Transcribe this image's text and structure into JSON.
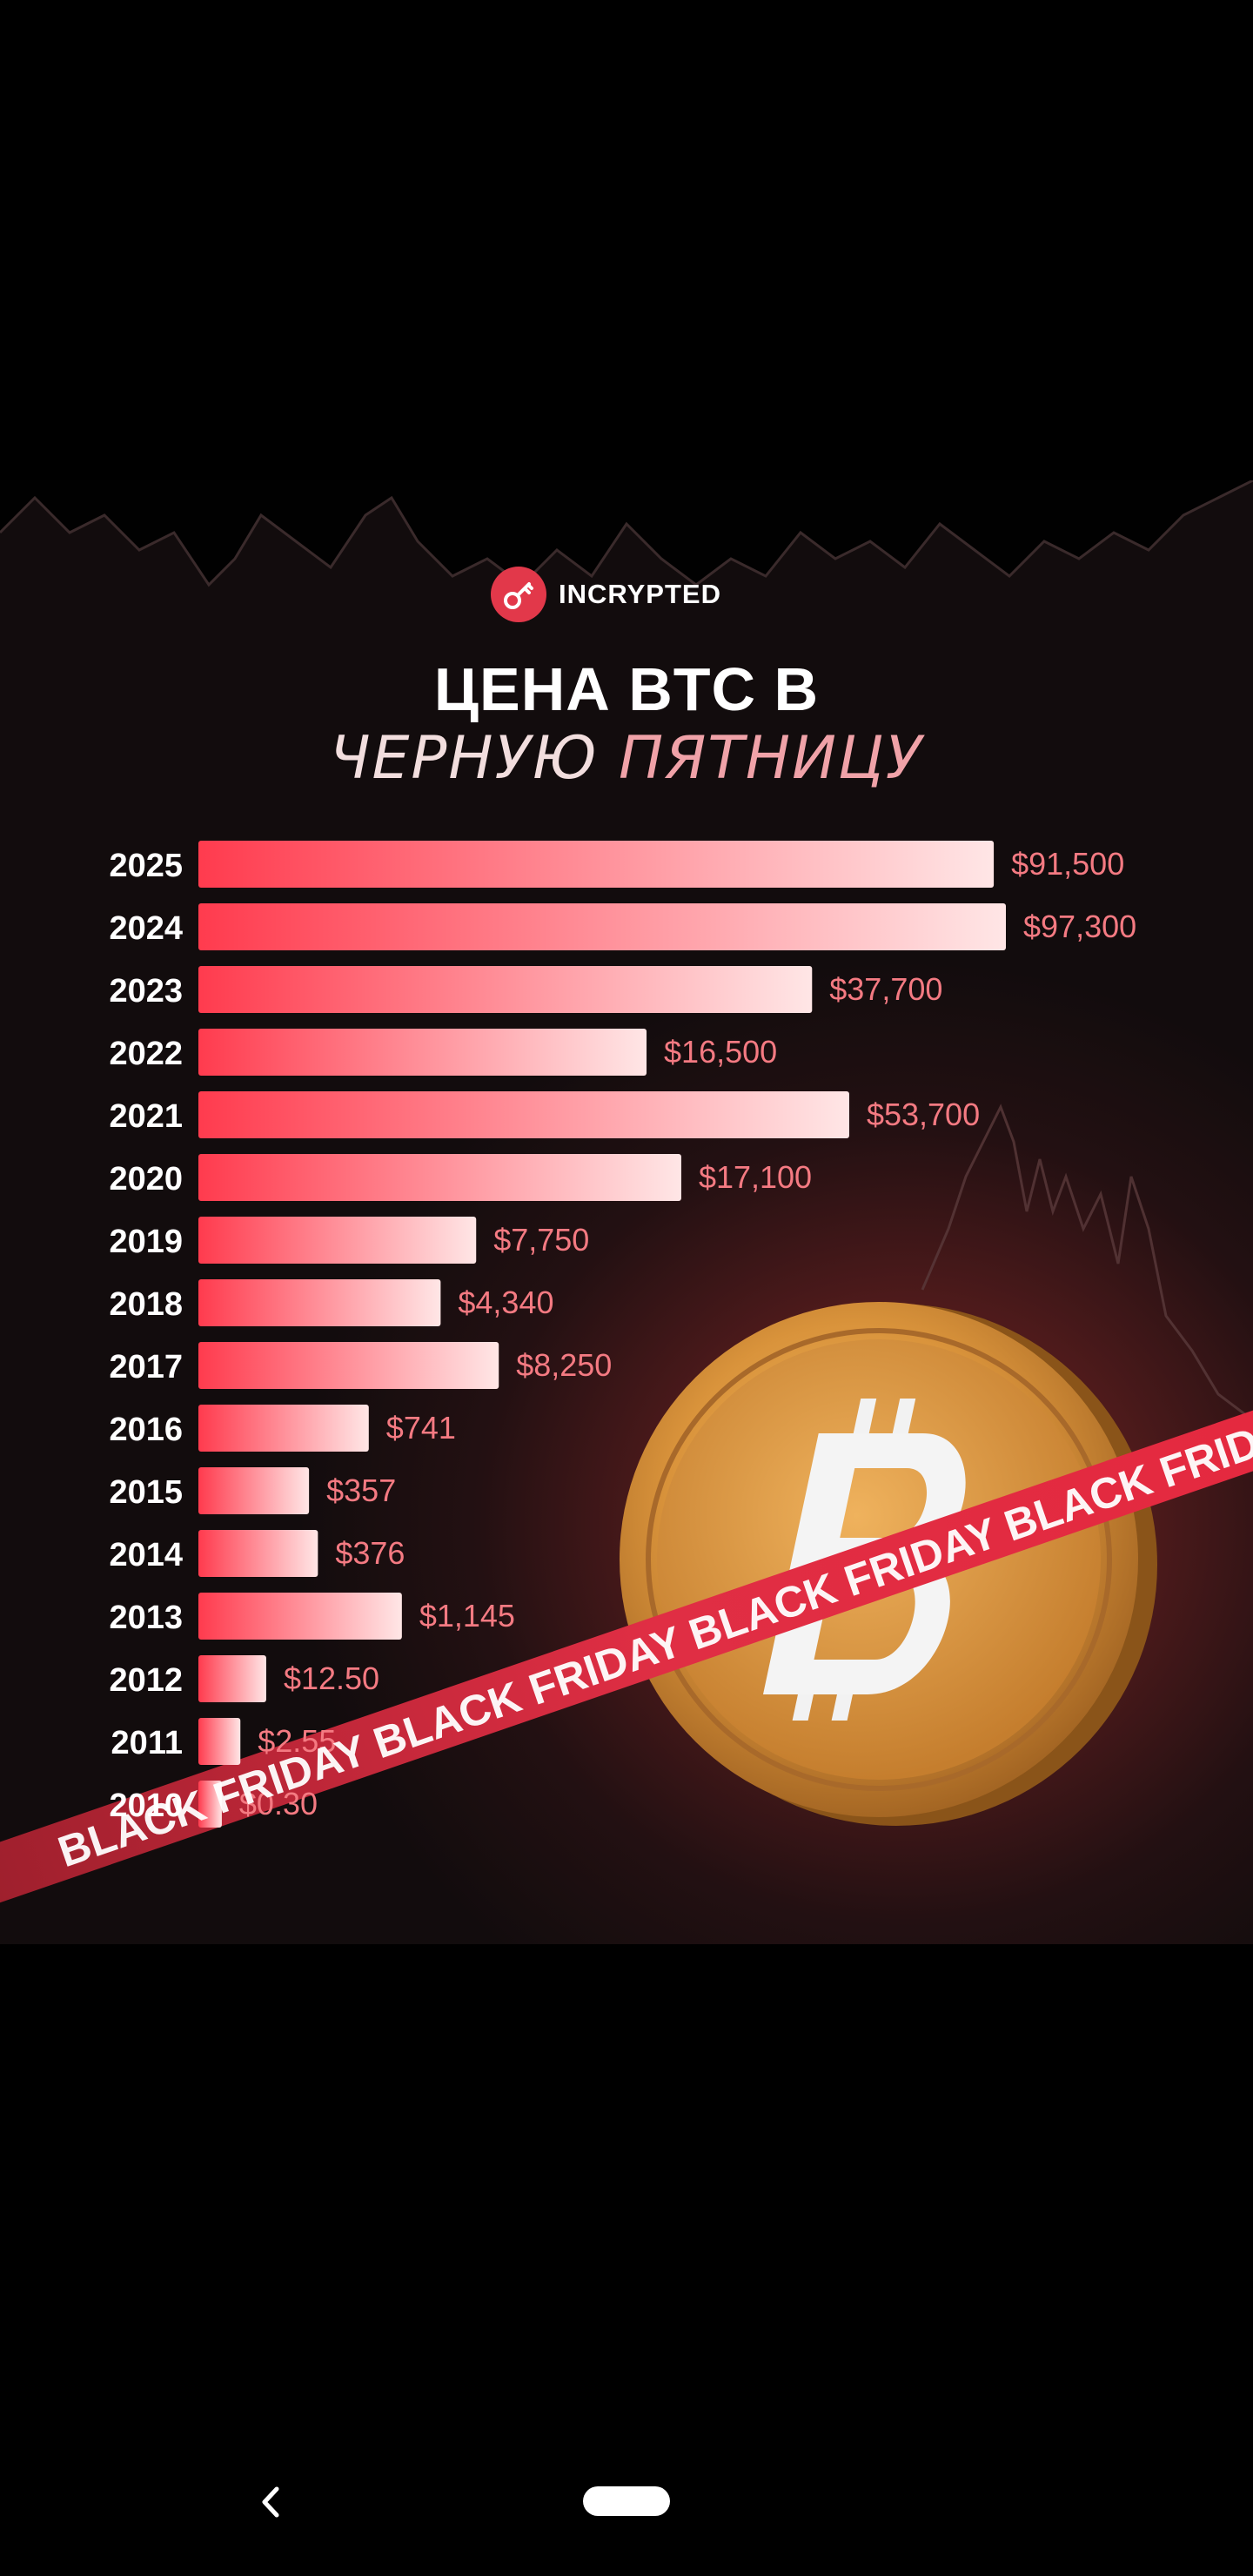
{
  "brand": {
    "name": "INCRYPTED",
    "accent": "#e2384a",
    "logo_icon": "key-icon"
  },
  "title": {
    "line1": "ЦЕНА BTC В",
    "line2_a": "ЧЕРНУЮ ",
    "line2_b": "ПЯТНИЦУ"
  },
  "banner": {
    "text": "BLACK FRIDAY  BLACK FRIDAY  BLACK FRIDAY  BLACK FRIDAY"
  },
  "chart_data": {
    "type": "bar",
    "orientation": "horizontal",
    "categories": [
      "2025",
      "2024",
      "2023",
      "2022",
      "2021",
      "2020",
      "2019",
      "2018",
      "2017",
      "2016",
      "2015",
      "2014",
      "2013",
      "2012",
      "2011",
      "2010"
    ],
    "values": [
      91500,
      97300,
      37700,
      16500,
      53700,
      17100,
      7750,
      4340,
      8250,
      741,
      357,
      376,
      1145,
      12.5,
      2.55,
      0.3
    ],
    "value_labels": [
      "$91,500",
      "$97,300",
      "$37,700",
      "$16,500",
      "$53,700",
      "$17,100",
      "$7,750",
      "$4,340",
      "$8,250",
      "$741",
      "$357",
      "$376",
      "$1,145",
      "$12.50",
      "$2.55",
      "$0.30"
    ],
    "scale": "non-linear",
    "bar_fill_fraction": [
      0.985,
      1.0,
      0.76,
      0.555,
      0.806,
      0.598,
      0.344,
      0.3,
      0.372,
      0.211,
      0.137,
      0.148,
      0.252,
      0.084,
      0.052,
      0.029
    ],
    "colors": {
      "bar_start": "#ff3b4e",
      "bar_end": "#ffe6e6",
      "value_label": "#f47a82",
      "year_label": "#ffffff"
    }
  },
  "nav": {
    "back_icon": "chevron-left-icon",
    "home_icon": "home-pill-icon"
  }
}
